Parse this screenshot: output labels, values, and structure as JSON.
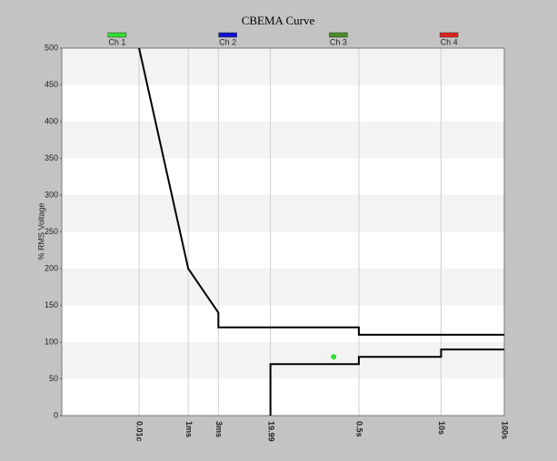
{
  "chart_data": {
    "type": "cbema",
    "title": "CBEMA Curve",
    "y_label": "% RMS Voltage",
    "xscale": "log",
    "xlim": [
      1e-05,
      100
    ],
    "ylim": [
      0,
      500
    ],
    "yticks": [
      0,
      50,
      100,
      150,
      200,
      250,
      300,
      350,
      400,
      450,
      500
    ],
    "xticks": [
      {
        "value": 0.000167,
        "label": "0.01c"
      },
      {
        "value": 0.001,
        "label": "1ms"
      },
      {
        "value": 0.003,
        "label": "3ms"
      },
      {
        "value": 0.01999,
        "label": "19.99"
      },
      {
        "value": 0.5,
        "label": "0.5s"
      },
      {
        "value": 10,
        "label": "10s"
      },
      {
        "value": 100,
        "label": "100s"
      }
    ],
    "grid": true,
    "series": [
      {
        "name": "Ch 1",
        "color": "#33dd33",
        "x": [
          0.2
        ],
        "values": [
          80
        ]
      },
      {
        "name": "Ch 2",
        "color": "#1111cc",
        "x": [],
        "values": []
      },
      {
        "name": "Ch 3",
        "color": "#4a8a2a",
        "x": [],
        "values": []
      },
      {
        "name": "Ch 4",
        "color": "#dd2222",
        "x": [],
        "values": []
      }
    ],
    "limit_curves": [
      {
        "color": "#000000",
        "x": [
          0.000167,
          0.001,
          0.003,
          0.003,
          0.5,
          0.5,
          100
        ],
        "values": [
          500,
          200,
          140,
          120,
          120,
          110,
          110
        ]
      },
      {
        "color": "#000000",
        "x": [
          0.01999,
          0.01999,
          0.5,
          0.5,
          10,
          10,
          100
        ],
        "values": [
          0,
          70,
          70,
          80,
          80,
          90,
          90
        ]
      }
    ]
  }
}
